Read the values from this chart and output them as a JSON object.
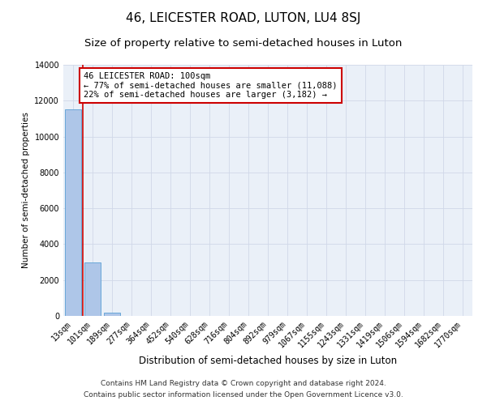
{
  "title": "46, LEICESTER ROAD, LUTON, LU4 8SJ",
  "subtitle": "Size of property relative to semi-detached houses in Luton",
  "xlabel": "Distribution of semi-detached houses by size in Luton",
  "ylabel": "Number of semi-detached properties",
  "categories": [
    "13sqm",
    "101sqm",
    "189sqm",
    "277sqm",
    "364sqm",
    "452sqm",
    "540sqm",
    "628sqm",
    "716sqm",
    "804sqm",
    "892sqm",
    "979sqm",
    "1067sqm",
    "1155sqm",
    "1243sqm",
    "1331sqm",
    "1419sqm",
    "1506sqm",
    "1594sqm",
    "1682sqm",
    "1770sqm"
  ],
  "bar_values": [
    11500,
    3000,
    200,
    0,
    0,
    0,
    0,
    0,
    0,
    0,
    0,
    0,
    0,
    0,
    0,
    0,
    0,
    0,
    0,
    0,
    0
  ],
  "bar_color": "#aec6e8",
  "bar_edge_color": "#5a9fd4",
  "highlight_color": "#cc0000",
  "annotation_text": "46 LEICESTER ROAD: 100sqm\n← 77% of semi-detached houses are smaller (11,088)\n22% of semi-detached houses are larger (3,182) →",
  "annotation_box_color": "#ffffff",
  "annotation_box_edge_color": "#cc0000",
  "ylim": [
    0,
    14000
  ],
  "yticks": [
    0,
    2000,
    4000,
    6000,
    8000,
    10000,
    12000,
    14000
  ],
  "grid_color": "#d0d8e8",
  "bg_color": "#eaf0f8",
  "footer_line1": "Contains HM Land Registry data © Crown copyright and database right 2024.",
  "footer_line2": "Contains public sector information licensed under the Open Government Licence v3.0.",
  "title_fontsize": 11,
  "subtitle_fontsize": 9.5,
  "annotation_fontsize": 7.5,
  "ylabel_fontsize": 7.5,
  "xlabel_fontsize": 8.5,
  "footer_fontsize": 6.5,
  "tick_fontsize": 7
}
